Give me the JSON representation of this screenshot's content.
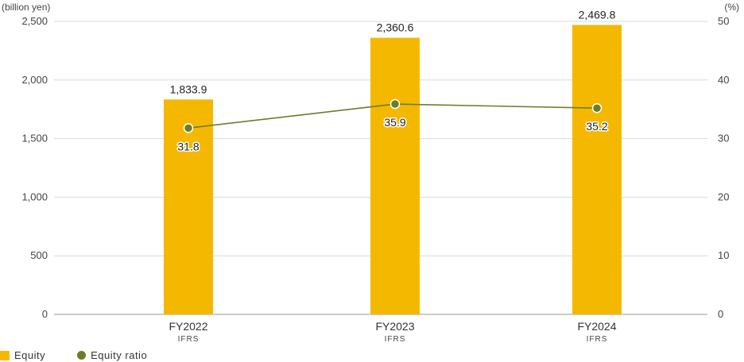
{
  "chart_data": {
    "type": "bar",
    "categories": [
      "FY2022",
      "FY2023",
      "FY2024"
    ],
    "category_sublabels": [
      "IFRS",
      "IFRS",
      "IFRS"
    ],
    "series": [
      {
        "name": "Equity",
        "type": "bar",
        "axis": "left",
        "values": [
          1833.9,
          2360.6,
          2469.8
        ],
        "value_labels": [
          "1,833.9",
          "2,360.6",
          "2,469.8"
        ],
        "color": "#f5b800"
      },
      {
        "name": "Equity ratio",
        "type": "line",
        "axis": "right",
        "values": [
          31.8,
          35.9,
          35.2
        ],
        "value_labels": [
          "31.8",
          "35.9",
          "35.2"
        ],
        "color": "#6b7d2a"
      }
    ],
    "left_axis": {
      "unit": "(billion yen)",
      "ylim": [
        0,
        2500
      ],
      "ticks": [
        0,
        500,
        1000,
        1500,
        2000,
        2500
      ],
      "tick_labels": [
        "0",
        "500",
        "1,000",
        "1,500",
        "2,000",
        "2,500"
      ]
    },
    "right_axis": {
      "unit": "(%)",
      "ylim": [
        0,
        50
      ],
      "ticks": [
        0,
        10,
        20,
        30,
        40,
        50
      ],
      "tick_labels": [
        "0",
        "10",
        "20",
        "30",
        "40",
        "50"
      ]
    },
    "grid": true,
    "legend_position": "bottom-left"
  }
}
